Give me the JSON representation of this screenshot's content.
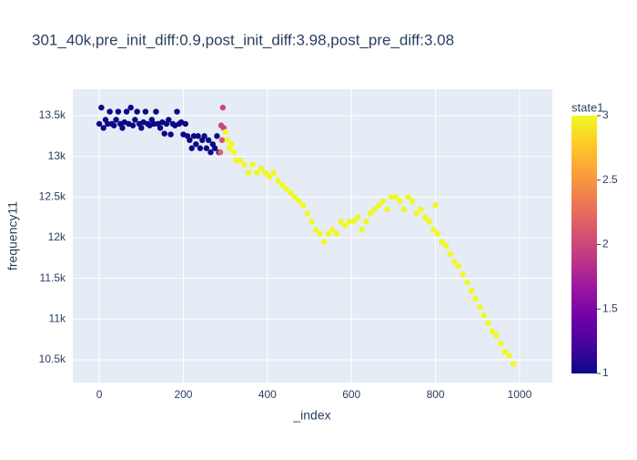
{
  "chart_data": {
    "type": "scatter",
    "title": "301_40k,pre_init_diff:0.9,post_init_diff:3.98,post_pre_diff:3.08",
    "x_label": "_index",
    "y_label": "frequency11",
    "xlim": [
      -63,
      1078
    ],
    "ylim": [
      10220,
      13825
    ],
    "xticks": [
      0,
      200,
      400,
      600,
      800,
      1000
    ],
    "yticks": [
      {
        "value": 10500,
        "label": "10.5k"
      },
      {
        "value": 11000,
        "label": "11k"
      },
      {
        "value": 11500,
        "label": "11.5k"
      },
      {
        "value": 12000,
        "label": "12k"
      },
      {
        "value": 12500,
        "label": "12.5k"
      },
      {
        "value": 13000,
        "label": "13k"
      },
      {
        "value": 13500,
        "label": "13.5k"
      }
    ],
    "grid": true,
    "colorbar": {
      "title": "state1",
      "lim": [
        1,
        3
      ],
      "ticks": [
        1,
        1.5,
        2,
        2.5,
        3
      ],
      "colorscale": [
        [
          0,
          "#0d0887"
        ],
        [
          0.111,
          "#46039f"
        ],
        [
          0.222,
          "#7201a8"
        ],
        [
          0.333,
          "#9c179e"
        ],
        [
          0.444,
          "#bd3786"
        ],
        [
          0.556,
          "#d8576b"
        ],
        [
          0.667,
          "#ed7953"
        ],
        [
          0.778,
          "#fb9f3a"
        ],
        [
          0.889,
          "#fdca26"
        ],
        [
          1,
          "#f0f921"
        ]
      ]
    },
    "series": [
      {
        "x": [
          0,
          5,
          10,
          15,
          20,
          25,
          30,
          35,
          40,
          45,
          50,
          55,
          60,
          65,
          70,
          75,
          80,
          85,
          90,
          95,
          100,
          105,
          110,
          115,
          120,
          125,
          130,
          135,
          140,
          145,
          150,
          155,
          160,
          165,
          170,
          175,
          180,
          185,
          190,
          195,
          200,
          205,
          210,
          215,
          220,
          225,
          230,
          235,
          240,
          245,
          250,
          255,
          260,
          265,
          270,
          275,
          280,
          285,
          290,
          292,
          294,
          296,
          288,
          300,
          305,
          310,
          315,
          320,
          325,
          335,
          345,
          355,
          365,
          375,
          385,
          395,
          405,
          415,
          425,
          435,
          445,
          455,
          465,
          475,
          485,
          495,
          505,
          515,
          525,
          535,
          545,
          555,
          565,
          575,
          585,
          595,
          605,
          615,
          625,
          635,
          645,
          655,
          665,
          675,
          685,
          695,
          705,
          715,
          725,
          735,
          745,
          755,
          765,
          775,
          785,
          795,
          805,
          815,
          825,
          835,
          845,
          855,
          865,
          875,
          885,
          895,
          905,
          915,
          925,
          935,
          945,
          955,
          965,
          975,
          985,
          800
        ],
        "values": [
          13400,
          13600,
          13350,
          13450,
          13400,
          13550,
          13400,
          13380,
          13450,
          13550,
          13400,
          13350,
          13420,
          13550,
          13400,
          13600,
          13380,
          13450,
          13550,
          13400,
          13350,
          13420,
          13550,
          13400,
          13380,
          13450,
          13400,
          13550,
          13400,
          13350,
          13420,
          13280,
          13400,
          13450,
          13270,
          13400,
          13380,
          13550,
          13400,
          13420,
          13270,
          13400,
          13250,
          13200,
          13100,
          13250,
          13150,
          13250,
          13100,
          13200,
          13250,
          13100,
          13200,
          13050,
          13150,
          13100,
          13250,
          13050,
          13380,
          13200,
          13600,
          13350,
          13050,
          13300,
          13200,
          13100,
          13150,
          13050,
          12950,
          12950,
          12900,
          12800,
          12900,
          12800,
          12850,
          12800,
          12750,
          12800,
          12700,
          12650,
          12600,
          12550,
          12500,
          12450,
          12400,
          12300,
          12200,
          12100,
          12050,
          11950,
          12050,
          12100,
          12050,
          12200,
          12150,
          12200,
          12200,
          12250,
          12100,
          12200,
          12300,
          12350,
          12400,
          12450,
          12350,
          12500,
          12500,
          12450,
          12350,
          12500,
          12450,
          12300,
          12350,
          12250,
          12200,
          12100,
          12050,
          11950,
          11900,
          11800,
          11700,
          11650,
          11550,
          11450,
          11350,
          11250,
          11150,
          11050,
          10950,
          10850,
          10800,
          10700,
          10600,
          10550,
          10450,
          12400
        ],
        "color_values": [
          1,
          1,
          1,
          1,
          1,
          1,
          1,
          1,
          1,
          1,
          1,
          1,
          1,
          1,
          1,
          1,
          1,
          1,
          1,
          1,
          1,
          1,
          1,
          1,
          1,
          1,
          1,
          1,
          1,
          1,
          1,
          1,
          1,
          1,
          1,
          1,
          1,
          1,
          1,
          1,
          1,
          1,
          1,
          1,
          1,
          1,
          1,
          1,
          1,
          1,
          1,
          1,
          1,
          1,
          1,
          1,
          1,
          1,
          2,
          2.1,
          2,
          2,
          2.2,
          3,
          3,
          3,
          3,
          3,
          3,
          3,
          3,
          3,
          3,
          3,
          3,
          3,
          3,
          3,
          3,
          3,
          3,
          3,
          3,
          3,
          3,
          3,
          3,
          3,
          3,
          3,
          3,
          3,
          3,
          3,
          3,
          3,
          3,
          3,
          3,
          3,
          3,
          3,
          3,
          3,
          3,
          3,
          3,
          3,
          3,
          3,
          3,
          3,
          3,
          3,
          3,
          3,
          3,
          3,
          3,
          3,
          3,
          3,
          3,
          3,
          3,
          3,
          3,
          3,
          3,
          3,
          3,
          3,
          3,
          3,
          3,
          3
        ]
      }
    ]
  }
}
